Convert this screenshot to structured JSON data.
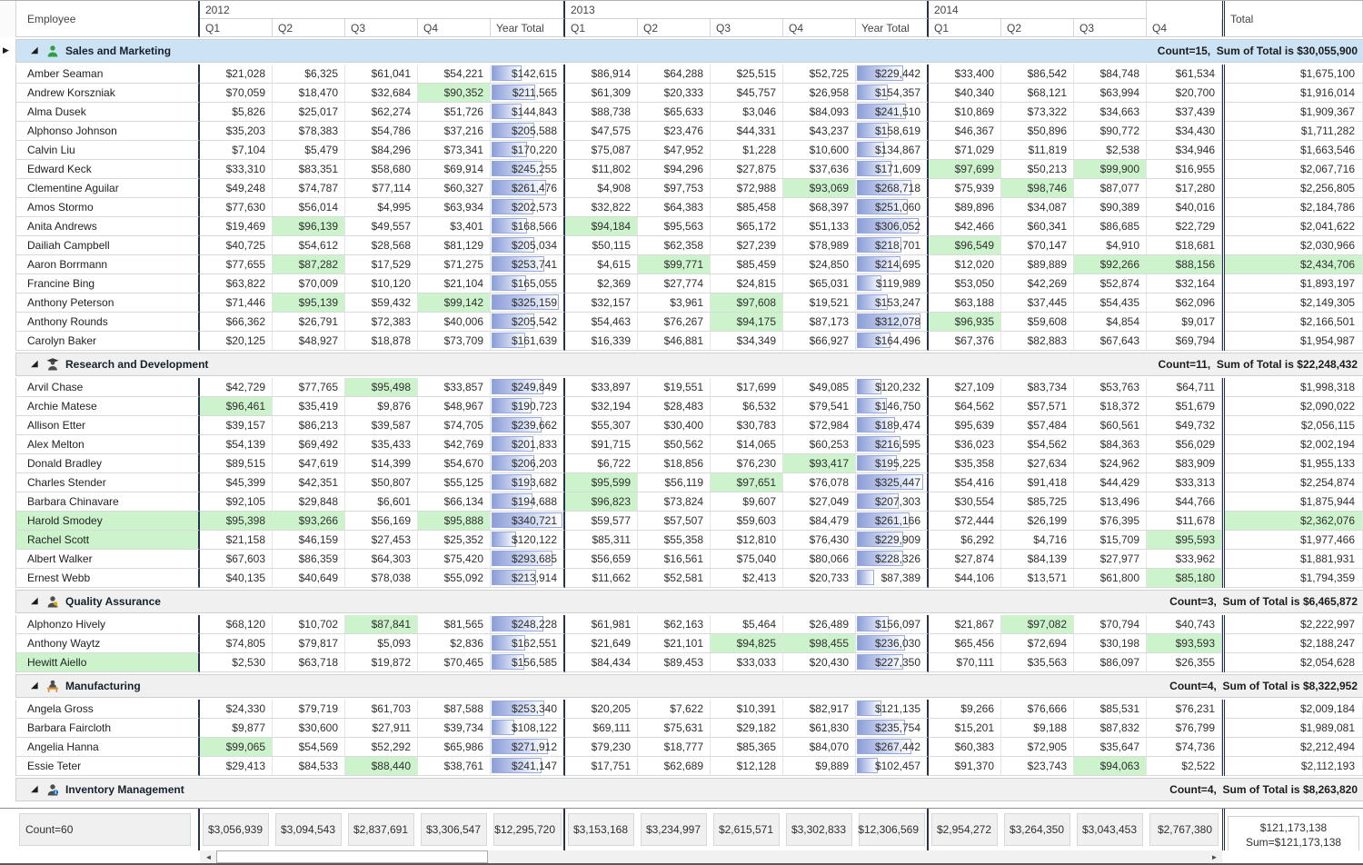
{
  "colors": {
    "group_selected_bg": "#cce3f5",
    "group_header_bg": "#f0f0f0",
    "highlight_green": "#cdf3cd",
    "databar_fill": "#8c9ed8",
    "databar_border": "#98a9e0",
    "separator_dark": "#26334f"
  },
  "header": {
    "employee_label": "Employee",
    "total_label": "Total",
    "years": [
      {
        "label": "2012",
        "quarters": [
          "Q1",
          "Q2",
          "Q3",
          "Q4",
          "Year Total"
        ]
      },
      {
        "label": "2013",
        "quarters": [
          "Q1",
          "Q2",
          "Q3",
          "Q4",
          "Year Total"
        ]
      },
      {
        "label": "2014",
        "quarters": [
          "Q1",
          "Q2",
          "Q3",
          "Q4"
        ]
      }
    ]
  },
  "groups": [
    {
      "name": "Sales and Marketing",
      "icon": "person-green-icon",
      "selected": true,
      "summary": "Count=15,  Sum of Total is $30,055,900",
      "rows": [
        {
          "name": "Amber Seaman",
          "cells": [
            "$21,028",
            "$6,325",
            "$61,041",
            "$54,221",
            "$142,615",
            "$86,914",
            "$64,288",
            "$25,515",
            "$52,725",
            "$229,442",
            "$33,400",
            "$86,542",
            "$84,748",
            "$61,534"
          ],
          "total": "$1,675,100",
          "hl": []
        },
        {
          "name": "Andrew Korszniak",
          "cells": [
            "$70,059",
            "$18,470",
            "$32,684",
            "$90,352",
            "$211,565",
            "$61,309",
            "$20,333",
            "$45,757",
            "$26,958",
            "$154,357",
            "$40,340",
            "$68,121",
            "$63,994",
            "$20,700"
          ],
          "total": "$1,916,014",
          "hl": [
            3
          ]
        },
        {
          "name": "Alma Dusek",
          "cells": [
            "$5,826",
            "$25,017",
            "$62,274",
            "$51,726",
            "$144,843",
            "$88,738",
            "$65,633",
            "$3,046",
            "$84,093",
            "$241,510",
            "$10,869",
            "$73,322",
            "$34,663",
            "$37,439"
          ],
          "total": "$1,909,367",
          "hl": []
        },
        {
          "name": "Alphonso Johnson",
          "cells": [
            "$35,203",
            "$78,383",
            "$54,786",
            "$37,216",
            "$205,588",
            "$47,575",
            "$23,476",
            "$44,331",
            "$43,237",
            "$158,619",
            "$46,367",
            "$50,896",
            "$90,772",
            "$34,430"
          ],
          "total": "$1,711,282",
          "hl": []
        },
        {
          "name": "Calvin Liu",
          "cells": [
            "$7,104",
            "$5,479",
            "$84,296",
            "$73,341",
            "$170,220",
            "$75,087",
            "$47,952",
            "$1,228",
            "$10,600",
            "$134,867",
            "$71,029",
            "$11,819",
            "$2,538",
            "$34,946"
          ],
          "total": "$1,663,546",
          "hl": []
        },
        {
          "name": "Edward Keck",
          "cells": [
            "$33,310",
            "$83,351",
            "$58,680",
            "$69,914",
            "$245,255",
            "$11,802",
            "$94,296",
            "$27,875",
            "$37,636",
            "$171,609",
            "$97,699",
            "$50,213",
            "$99,900",
            "$16,955"
          ],
          "total": "$2,067,716",
          "hl": [
            10,
            12
          ]
        },
        {
          "name": "Clementine Aguilar",
          "cells": [
            "$49,248",
            "$74,787",
            "$77,114",
            "$60,327",
            "$261,476",
            "$4,908",
            "$97,753",
            "$72,988",
            "$93,069",
            "$268,718",
            "$75,939",
            "$98,746",
            "$87,077",
            "$17,280"
          ],
          "total": "$2,256,805",
          "hl": [
            8,
            11
          ]
        },
        {
          "name": "Amos Stormo",
          "cells": [
            "$77,630",
            "$56,014",
            "$4,995",
            "$63,934",
            "$202,573",
            "$32,822",
            "$64,383",
            "$85,458",
            "$68,397",
            "$251,060",
            "$89,896",
            "$34,087",
            "$90,389",
            "$40,016"
          ],
          "total": "$2,184,786",
          "hl": []
        },
        {
          "name": "Anita Andrews",
          "cells": [
            "$19,469",
            "$96,139",
            "$49,557",
            "$3,401",
            "$168,566",
            "$94,184",
            "$95,563",
            "$65,172",
            "$51,133",
            "$306,052",
            "$42,466",
            "$60,341",
            "$86,685",
            "$22,729"
          ],
          "total": "$2,041,622",
          "hl": [
            1,
            5
          ]
        },
        {
          "name": "Dailiah Campbell",
          "cells": [
            "$40,725",
            "$54,612",
            "$28,568",
            "$81,129",
            "$205,034",
            "$50,115",
            "$62,358",
            "$27,239",
            "$78,989",
            "$218,701",
            "$96,549",
            "$70,147",
            "$4,910",
            "$18,681"
          ],
          "total": "$2,030,966",
          "hl": [
            10
          ]
        },
        {
          "name": "Aaron Borrmann",
          "cells": [
            "$77,655",
            "$87,282",
            "$17,529",
            "$71,275",
            "$253,741",
            "$4,615",
            "$99,771",
            "$85,459",
            "$24,850",
            "$214,695",
            "$12,020",
            "$89,889",
            "$92,266",
            "$88,156"
          ],
          "total": "$2,434,706",
          "hl": [
            1,
            6,
            12,
            13
          ],
          "hlTotal": true
        },
        {
          "name": "Francine Bing",
          "cells": [
            "$63,822",
            "$70,009",
            "$10,120",
            "$21,104",
            "$165,055",
            "$2,369",
            "$27,774",
            "$24,815",
            "$65,031",
            "$119,989",
            "$53,050",
            "$42,269",
            "$52,874",
            "$32,164"
          ],
          "total": "$1,893,197",
          "hl": []
        },
        {
          "name": "Anthony Peterson",
          "cells": [
            "$71,446",
            "$95,139",
            "$59,432",
            "$99,142",
            "$325,159",
            "$32,157",
            "$3,961",
            "$97,608",
            "$19,521",
            "$153,247",
            "$63,188",
            "$37,445",
            "$54,435",
            "$62,096"
          ],
          "total": "$2,149,305",
          "hl": [
            1,
            3,
            7
          ]
        },
        {
          "name": "Anthony Rounds",
          "cells": [
            "$66,362",
            "$26,791",
            "$72,383",
            "$40,006",
            "$205,542",
            "$54,463",
            "$76,267",
            "$94,175",
            "$87,173",
            "$312,078",
            "$96,935",
            "$59,608",
            "$4,854",
            "$9,017"
          ],
          "total": "$2,166,501",
          "hl": [
            7,
            10
          ]
        },
        {
          "name": "Carolyn Baker",
          "cells": [
            "$20,125",
            "$48,927",
            "$18,878",
            "$73,709",
            "$161,639",
            "$16,339",
            "$46,881",
            "$34,349",
            "$66,927",
            "$164,496",
            "$67,376",
            "$82,883",
            "$67,643",
            "$69,794"
          ],
          "total": "$1,954,987",
          "hl": []
        }
      ]
    },
    {
      "name": "Research and Development",
      "icon": "person-graduate-icon",
      "selected": false,
      "summary": "Count=11,  Sum of Total is $22,248,432",
      "rows": [
        {
          "name": "Arvil Chase",
          "cells": [
            "$42,729",
            "$77,765",
            "$95,498",
            "$33,857",
            "$249,849",
            "$33,897",
            "$19,551",
            "$17,699",
            "$49,085",
            "$120,232",
            "$27,109",
            "$83,734",
            "$53,763",
            "$64,711"
          ],
          "total": "$1,998,318",
          "hl": [
            2
          ]
        },
        {
          "name": "Archie Matese",
          "cells": [
            "$96,461",
            "$35,419",
            "$9,876",
            "$48,967",
            "$190,723",
            "$32,194",
            "$28,483",
            "$6,532",
            "$79,541",
            "$146,750",
            "$64,562",
            "$57,571",
            "$18,372",
            "$51,679"
          ],
          "total": "$2,090,022",
          "hl": [
            0
          ]
        },
        {
          "name": "Allison Etter",
          "cells": [
            "$39,157",
            "$86,213",
            "$39,587",
            "$74,705",
            "$239,662",
            "$55,307",
            "$30,400",
            "$30,783",
            "$72,984",
            "$189,474",
            "$95,639",
            "$57,484",
            "$60,561",
            "$49,732"
          ],
          "total": "$2,056,115",
          "hl": []
        },
        {
          "name": "Alex Melton",
          "cells": [
            "$54,139",
            "$69,492",
            "$35,433",
            "$42,769",
            "$201,833",
            "$91,715",
            "$50,562",
            "$14,065",
            "$60,253",
            "$216,595",
            "$36,023",
            "$54,562",
            "$84,363",
            "$56,029"
          ],
          "total": "$2,002,194",
          "hl": []
        },
        {
          "name": "Donald Bradley",
          "cells": [
            "$89,515",
            "$47,619",
            "$14,399",
            "$54,670",
            "$206,203",
            "$6,722",
            "$18,856",
            "$76,230",
            "$93,417",
            "$195,225",
            "$35,358",
            "$27,634",
            "$24,962",
            "$83,909"
          ],
          "total": "$1,955,133",
          "hl": [
            8
          ]
        },
        {
          "name": "Charles Stender",
          "cells": [
            "$45,399",
            "$42,351",
            "$50,807",
            "$55,125",
            "$193,682",
            "$95,599",
            "$56,119",
            "$97,651",
            "$76,078",
            "$325,447",
            "$54,416",
            "$91,418",
            "$44,429",
            "$33,313"
          ],
          "total": "$2,254,874",
          "hl": [
            5,
            7
          ]
        },
        {
          "name": "Barbara Chinavare",
          "cells": [
            "$92,105",
            "$29,848",
            "$6,601",
            "$66,134",
            "$194,688",
            "$96,823",
            "$73,824",
            "$9,607",
            "$27,049",
            "$207,303",
            "$30,554",
            "$85,725",
            "$13,496",
            "$44,766"
          ],
          "total": "$1,875,944",
          "hl": [
            5
          ]
        },
        {
          "name": "Harold Smodey",
          "hlName": true,
          "cells": [
            "$95,398",
            "$93,266",
            "$56,169",
            "$95,888",
            "$340,721",
            "$59,577",
            "$57,507",
            "$59,603",
            "$84,479",
            "$261,166",
            "$72,444",
            "$26,199",
            "$76,395",
            "$11,678"
          ],
          "total": "$2,362,076",
          "hl": [
            0,
            1,
            3
          ],
          "hlTotal": true
        },
        {
          "name": "Rachel Scott",
          "hlName": true,
          "cells": [
            "$21,158",
            "$46,159",
            "$27,453",
            "$25,352",
            "$120,122",
            "$85,311",
            "$55,358",
            "$12,810",
            "$76,430",
            "$229,909",
            "$6,292",
            "$4,716",
            "$15,709",
            "$95,593"
          ],
          "total": "$1,977,466",
          "hl": [
            13
          ]
        },
        {
          "name": "Albert Walker",
          "cells": [
            "$67,603",
            "$86,359",
            "$64,303",
            "$75,420",
            "$293,685",
            "$56,659",
            "$16,561",
            "$75,040",
            "$80,066",
            "$228,326",
            "$27,874",
            "$84,139",
            "$27,977",
            "$33,962"
          ],
          "total": "$1,881,931",
          "hl": []
        },
        {
          "name": "Ernest Webb",
          "cells": [
            "$40,135",
            "$40,649",
            "$78,038",
            "$55,092",
            "$213,914",
            "$11,662",
            "$52,581",
            "$2,413",
            "$20,733",
            "$87,389",
            "$44,106",
            "$13,571",
            "$61,800",
            "$85,180"
          ],
          "total": "$1,794,359",
          "hl": [
            13
          ]
        }
      ]
    },
    {
      "name": "Quality Assurance",
      "icon": "person-key-icon",
      "selected": false,
      "summary": "Count=3,  Sum of Total is $6,465,872",
      "rows": [
        {
          "name": "Alphonzo Hively",
          "cells": [
            "$68,120",
            "$10,702",
            "$87,841",
            "$81,565",
            "$248,228",
            "$61,981",
            "$62,163",
            "$5,464",
            "$26,489",
            "$156,097",
            "$21,867",
            "$97,082",
            "$70,794",
            "$40,743"
          ],
          "total": "$2,222,997",
          "hl": [
            2,
            11
          ]
        },
        {
          "name": "Anthony Waytz",
          "cells": [
            "$74,805",
            "$79,817",
            "$5,093",
            "$2,836",
            "$162,551",
            "$21,649",
            "$21,101",
            "$94,825",
            "$98,455",
            "$236,030",
            "$65,456",
            "$72,694",
            "$30,198",
            "$93,593"
          ],
          "total": "$2,188,247",
          "hl": [
            7,
            8,
            13
          ]
        },
        {
          "name": "Hewitt Aiello",
          "hlName": true,
          "cells": [
            "$2,530",
            "$63,718",
            "$19,872",
            "$70,465",
            "$156,585",
            "$84,434",
            "$89,453",
            "$33,033",
            "$20,430",
            "$227,350",
            "$70,111",
            "$35,563",
            "$86,097",
            "$26,355"
          ],
          "total": "$2,054,628",
          "hl": []
        }
      ]
    },
    {
      "name": "Manufacturing",
      "icon": "person-desk-icon",
      "selected": false,
      "summary": "Count=4,  Sum of Total is $8,322,952",
      "rows": [
        {
          "name": "Angela Gross",
          "cells": [
            "$24,330",
            "$79,719",
            "$61,703",
            "$87,588",
            "$253,340",
            "$20,205",
            "$7,622",
            "$10,391",
            "$82,917",
            "$121,135",
            "$9,266",
            "$76,666",
            "$85,531",
            "$76,231"
          ],
          "total": "$2,009,184",
          "hl": []
        },
        {
          "name": "Barbara Faircloth",
          "cells": [
            "$9,877",
            "$30,600",
            "$27,911",
            "$39,734",
            "$108,122",
            "$69,111",
            "$75,631",
            "$29,182",
            "$61,830",
            "$235,754",
            "$15,201",
            "$9,188",
            "$87,832",
            "$76,799"
          ],
          "total": "$1,989,081",
          "hl": []
        },
        {
          "name": "Angelia Hanna",
          "cells": [
            "$99,065",
            "$54,569",
            "$52,292",
            "$65,986",
            "$271,912",
            "$79,230",
            "$18,777",
            "$85,365",
            "$84,070",
            "$267,442",
            "$60,383",
            "$72,905",
            "$35,647",
            "$74,736"
          ],
          "total": "$2,212,494",
          "hl": [
            0
          ]
        },
        {
          "name": "Essie Teter",
          "cells": [
            "$29,413",
            "$84,533",
            "$88,440",
            "$38,761",
            "$241,147",
            "$17,751",
            "$62,689",
            "$12,128",
            "$9,889",
            "$102,457",
            "$91,370",
            "$23,743",
            "$94,063",
            "$2,522"
          ],
          "total": "$2,112,193",
          "hl": [
            2,
            12
          ]
        }
      ]
    },
    {
      "name": "Inventory Management",
      "icon": "person-info-icon",
      "selected": false,
      "summary": "Count=4,  Sum of Total is $8,263,820",
      "rows": []
    }
  ],
  "footer": {
    "count_label": "Count=60",
    "sums": [
      "$3,056,939",
      "$3,094,543",
      "$2,837,691",
      "$3,306,547",
      "$12,295,720",
      "$3,153,168",
      "$3,234,997",
      "$2,615,571",
      "$3,302,833",
      "$12,306,569",
      "$2,954,272",
      "$3,264,350",
      "$3,043,453",
      "$2,767,380"
    ],
    "total_line1": "$121,173,138",
    "total_line2": "Sum=$121,173,138"
  }
}
